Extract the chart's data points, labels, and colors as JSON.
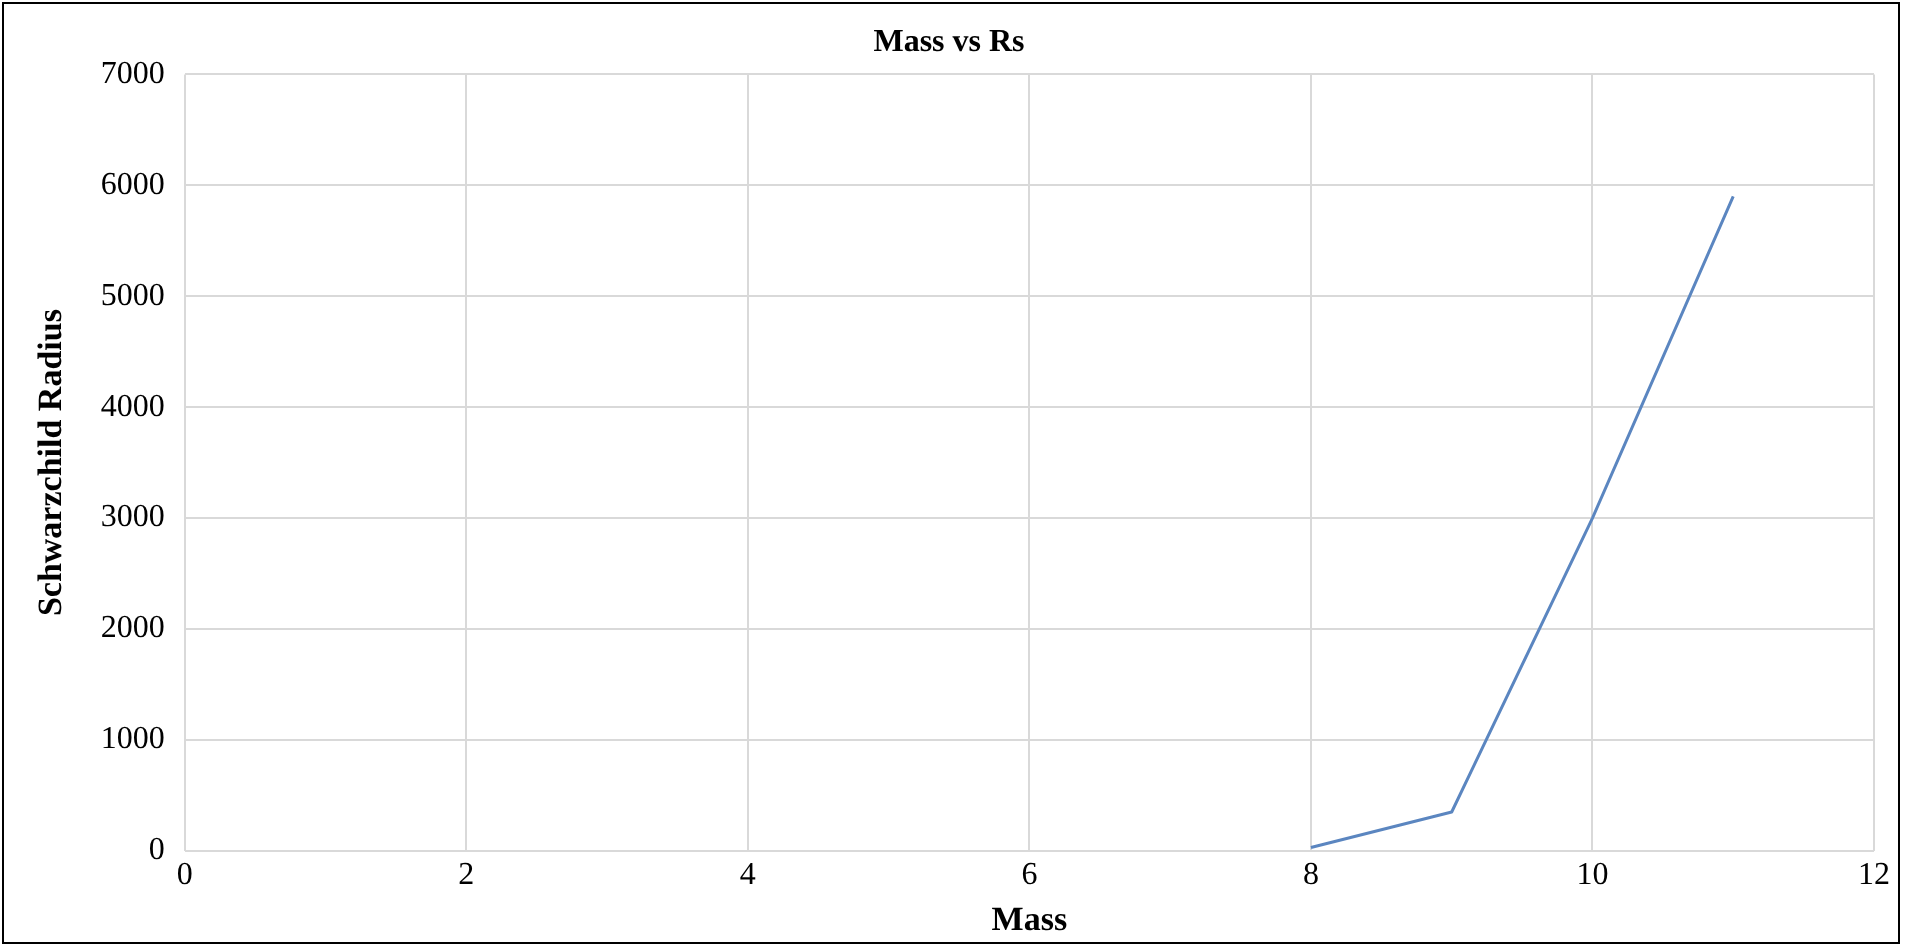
{
  "chart_data": {
    "type": "line",
    "title": "Mass vs Rs",
    "xlabel": "Mass",
    "ylabel": "Schwarzchild Radius",
    "series": [
      {
        "color": "#5b86c0",
        "x": [
          8,
          9,
          10,
          11
        ],
        "values": [
          30,
          350,
          3000,
          5900
        ]
      }
    ],
    "xlim": [
      0,
      12
    ],
    "xticks": [
      0,
      2,
      4,
      6,
      8,
      10,
      12
    ],
    "ylim": [
      0,
      7000
    ],
    "yticks": [
      0,
      1000,
      2000,
      3000,
      4000,
      5000,
      6000,
      7000
    ],
    "grid": true,
    "legend": false,
    "marker": "none",
    "line_style": "solid"
  }
}
